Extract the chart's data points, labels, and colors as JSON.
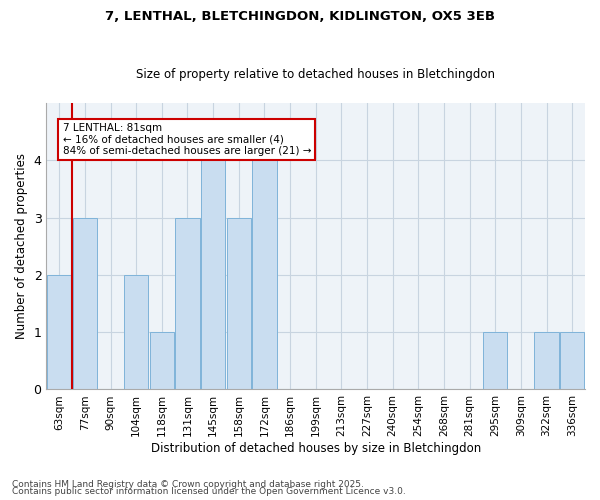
{
  "title1": "7, LENTHAL, BLETCHINGDON, KIDLINGTON, OX5 3EB",
  "title2": "Size of property relative to detached houses in Bletchingdon",
  "xlabel": "Distribution of detached houses by size in Bletchingdon",
  "ylabel": "Number of detached properties",
  "footer1": "Contains HM Land Registry data © Crown copyright and database right 2025.",
  "footer2": "Contains public sector information licensed under the Open Government Licence v3.0.",
  "annotation_line1": "7 LENTHAL: 81sqm",
  "annotation_line2": "← 16% of detached houses are smaller (4)",
  "annotation_line3": "84% of semi-detached houses are larger (21) →",
  "bar_color": "#c9ddf0",
  "bar_edge_color": "#7fb3d9",
  "grid_color": "#c8d4e0",
  "ref_line_color": "#cc0000",
  "annotation_box_facecolor": "#ffffff",
  "annotation_box_edgecolor": "#cc0000",
  "categories": [
    "63sqm",
    "77sqm",
    "90sqm",
    "104sqm",
    "118sqm",
    "131sqm",
    "145sqm",
    "158sqm",
    "172sqm",
    "186sqm",
    "199sqm",
    "213sqm",
    "227sqm",
    "240sqm",
    "254sqm",
    "268sqm",
    "281sqm",
    "295sqm",
    "309sqm",
    "322sqm",
    "336sqm"
  ],
  "values": [
    2,
    3,
    0,
    2,
    1,
    3,
    4,
    3,
    4,
    0,
    0,
    0,
    0,
    0,
    0,
    0,
    0,
    1,
    0,
    1,
    1
  ],
  "ref_line_x": 0.5,
  "ylim": [
    0,
    5
  ],
  "yticks": [
    0,
    1,
    2,
    3,
    4
  ],
  "title1_fontsize": 9.5,
  "title2_fontsize": 8.5,
  "xlabel_fontsize": 8.5,
  "ylabel_fontsize": 8.5,
  "tick_fontsize": 7.5,
  "footer_fontsize": 6.5,
  "ann_fontsize": 7.5
}
